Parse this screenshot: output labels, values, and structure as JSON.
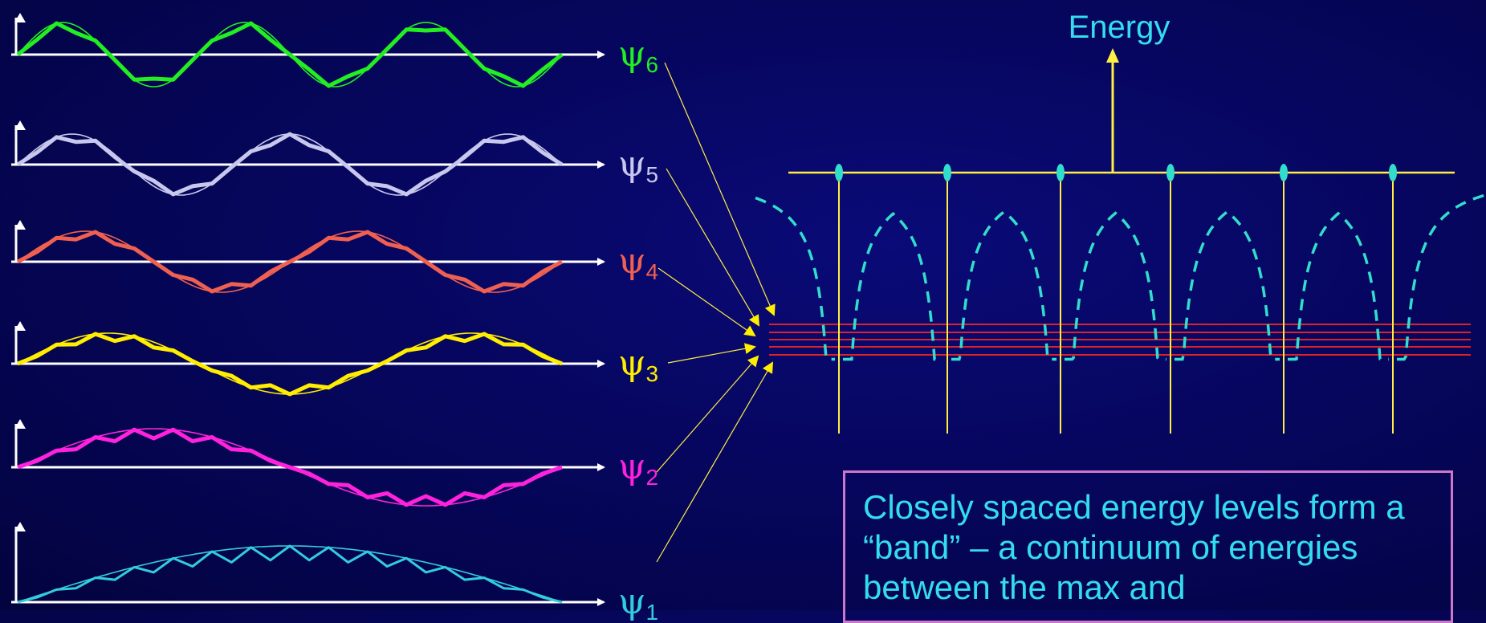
{
  "energy_label": "Energy",
  "note_text": "Closely spaced energy levels form a “band” – a continuum of energies between the max and",
  "wavefunctions": [
    {
      "symbol": "ψ",
      "index": "6",
      "color": "#22ee22"
    },
    {
      "symbol": "ψ",
      "index": "5",
      "color": "#c8c8ee"
    },
    {
      "symbol": "ψ",
      "index": "4",
      "color": "#f06050"
    },
    {
      "symbol": "ψ",
      "index": "3",
      "color": "#ffee00"
    },
    {
      "symbol": "ψ",
      "index": "2",
      "color": "#ff22dd"
    },
    {
      "symbol": "ψ",
      "index": "1",
      "color": "#33ccdd"
    }
  ],
  "colors": {
    "axis": "#ffffff",
    "lattice": "#ffee44",
    "potential": "#33ddcc",
    "band": "#dd2222",
    "note_border": "#cc77cc",
    "text": "#33ddee"
  }
}
